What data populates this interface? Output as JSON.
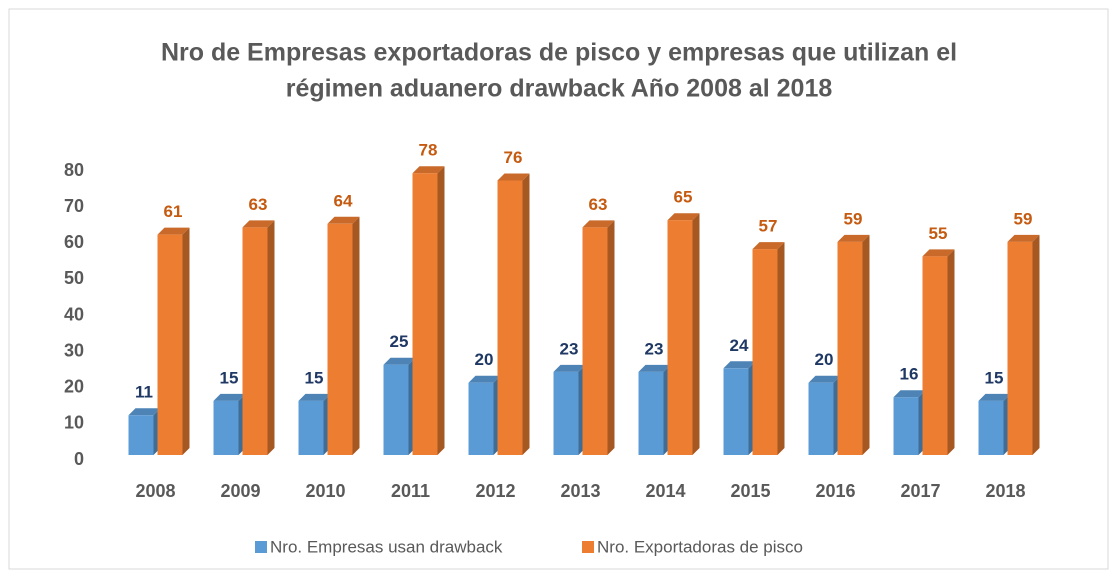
{
  "chart_data": {
    "type": "bar3d",
    "title": [
      "Nro de Empresas exportadoras de pisco y empresas que utilizan el",
      "régimen aduanero drawback Año 2008 al 2018"
    ],
    "categories": [
      "2008",
      "2009",
      "2010",
      "2011",
      "2012",
      "2013",
      "2014",
      "2015",
      "2016",
      "2017",
      "2018"
    ],
    "series": [
      {
        "name": "Nro. Empresas usan drawback",
        "color": "#5b9bd5",
        "label_color": "#1f3864",
        "values": [
          11,
          15,
          15,
          25,
          20,
          23,
          23,
          24,
          20,
          16,
          15
        ]
      },
      {
        "name": "Nro. Exportadoras de pisco",
        "color": "#ed7d31",
        "label_color": "#c55a11",
        "values": [
          61,
          63,
          64,
          78,
          76,
          63,
          65,
          57,
          59,
          55,
          59
        ]
      }
    ],
    "ylim": [
      0,
      80
    ],
    "yticks": [
      0,
      10,
      20,
      30,
      40,
      50,
      60,
      70,
      80
    ],
    "grid": false,
    "legend": "bottom"
  }
}
